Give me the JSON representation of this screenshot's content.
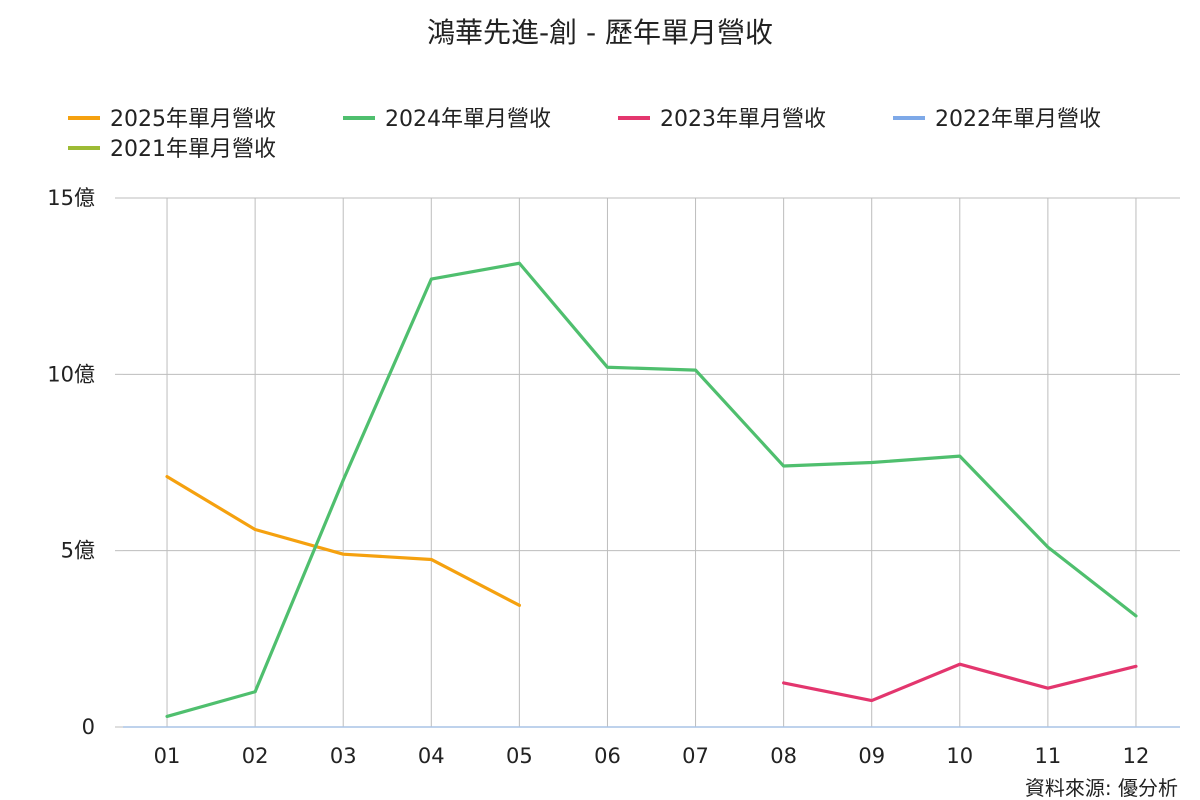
{
  "chart_data": {
    "type": "line",
    "title": "鴻華先進-創 - 歷年單月營收",
    "categories": [
      "01",
      "02",
      "03",
      "04",
      "05",
      "06",
      "07",
      "08",
      "09",
      "10",
      "11",
      "12"
    ],
    "y_ticks": [
      {
        "value": 0,
        "label": "0"
      },
      {
        "value": 5,
        "label": "5億"
      },
      {
        "value": 10,
        "label": "10億"
      },
      {
        "value": 15,
        "label": "15億"
      }
    ],
    "ylim": [
      0,
      15
    ],
    "unit": "億",
    "grid": true,
    "legend_position": "top",
    "series": [
      {
        "name": "2025年單月營收",
        "color": "#F5A10F",
        "values": [
          7.1,
          5.6,
          4.9,
          4.75,
          3.45,
          null,
          null,
          null,
          null,
          null,
          null,
          null
        ]
      },
      {
        "name": "2024年單月營收",
        "color": "#4FBF6E",
        "values": [
          0.3,
          1.0,
          7.0,
          12.7,
          13.15,
          10.2,
          10.12,
          7.4,
          7.5,
          7.68,
          5.1,
          3.15
        ]
      },
      {
        "name": "2023年單月營收",
        "color": "#E3366E",
        "values": [
          null,
          null,
          null,
          null,
          null,
          null,
          null,
          1.25,
          0.75,
          1.78,
          1.1,
          1.72
        ]
      },
      {
        "name": "2022年單月營收",
        "color": "#7EA9E8",
        "values": [
          null,
          null,
          null,
          null,
          null,
          null,
          null,
          null,
          null,
          null,
          null,
          null
        ]
      },
      {
        "name": "2021年單月營收",
        "color": "#9DBB35",
        "values": [
          null,
          null,
          null,
          null,
          null,
          null,
          null,
          null,
          null,
          null,
          null,
          null
        ]
      }
    ],
    "source": "資料來源: 優分析"
  }
}
